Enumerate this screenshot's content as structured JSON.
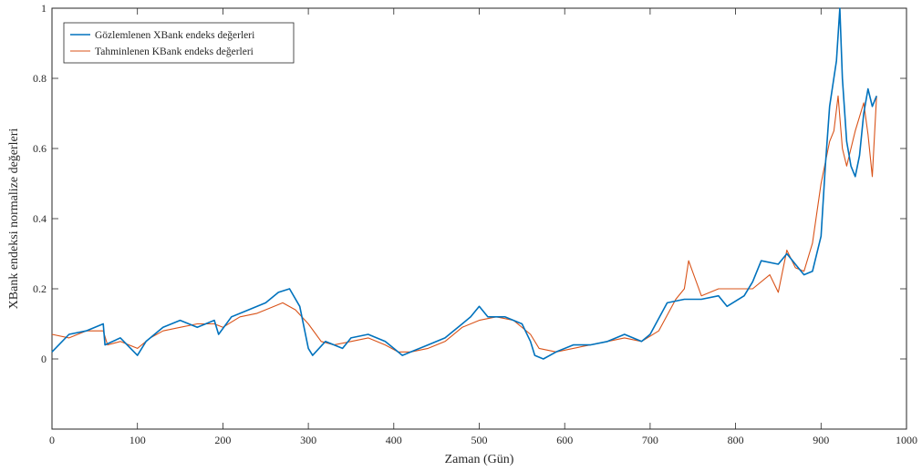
{
  "chart_data": {
    "type": "line",
    "title": "",
    "xlabel": "Zaman (Gün)",
    "ylabel": "XBank endeksi normalize değerleri",
    "xlim": [
      0,
      1000
    ],
    "ylim": [
      -0.2,
      1
    ],
    "x_ticks": [
      0,
      100,
      200,
      300,
      400,
      500,
      600,
      700,
      800,
      900,
      1000
    ],
    "y_ticks": [
      0,
      0.2,
      0.4,
      0.6,
      0.8,
      1
    ],
    "y_tick_labels": [
      "0",
      "0.2",
      "0.4",
      "0.6",
      "0.8",
      "1"
    ],
    "grid": false,
    "box": true,
    "legend_position": "top-left",
    "series": [
      {
        "name": "Gözlemlenen XBank endeks değerleri",
        "color": "#0072BD",
        "x": [
          0,
          20,
          40,
          60,
          62,
          80,
          100,
          110,
          130,
          150,
          170,
          190,
          195,
          210,
          230,
          250,
          265,
          278,
          290,
          300,
          305,
          320,
          340,
          350,
          370,
          390,
          400,
          410,
          420,
          440,
          460,
          480,
          490,
          500,
          510,
          530,
          550,
          560,
          565,
          575,
          590,
          610,
          630,
          650,
          670,
          690,
          700,
          720,
          740,
          760,
          780,
          790,
          810,
          820,
          830,
          850,
          860,
          880,
          890,
          900,
          905,
          910,
          918,
          922,
          925,
          930,
          935,
          940,
          945,
          950,
          955,
          960,
          965
        ],
        "y": [
          0.02,
          0.07,
          0.08,
          0.1,
          0.04,
          0.06,
          0.01,
          0.05,
          0.09,
          0.11,
          0.09,
          0.11,
          0.07,
          0.12,
          0.14,
          0.16,
          0.19,
          0.2,
          0.15,
          0.03,
          0.01,
          0.05,
          0.03,
          0.06,
          0.07,
          0.05,
          0.03,
          0.01,
          0.02,
          0.04,
          0.06,
          0.1,
          0.12,
          0.15,
          0.12,
          0.12,
          0.1,
          0.05,
          0.01,
          0.0,
          0.02,
          0.04,
          0.04,
          0.05,
          0.07,
          0.05,
          0.07,
          0.16,
          0.17,
          0.17,
          0.18,
          0.15,
          0.18,
          0.22,
          0.28,
          0.27,
          0.3,
          0.24,
          0.25,
          0.35,
          0.55,
          0.72,
          0.85,
          1.0,
          0.8,
          0.62,
          0.55,
          0.52,
          0.58,
          0.7,
          0.77,
          0.72,
          0.75
        ]
      },
      {
        "name": "Tahminlenen KBank endeks değerleri",
        "color": "#D95319",
        "x": [
          0,
          20,
          40,
          60,
          65,
          80,
          100,
          115,
          130,
          150,
          170,
          190,
          200,
          220,
          240,
          260,
          270,
          285,
          300,
          315,
          330,
          350,
          370,
          390,
          405,
          420,
          440,
          460,
          480,
          500,
          520,
          540,
          560,
          570,
          590,
          610,
          630,
          650,
          670,
          690,
          710,
          730,
          740,
          745,
          760,
          780,
          800,
          820,
          840,
          850,
          860,
          870,
          880,
          890,
          900,
          910,
          915,
          920,
          925,
          930,
          940,
          950,
          955,
          960,
          965
        ],
        "y": [
          0.07,
          0.06,
          0.08,
          0.08,
          0.04,
          0.05,
          0.03,
          0.06,
          0.08,
          0.09,
          0.1,
          0.1,
          0.09,
          0.12,
          0.13,
          0.15,
          0.16,
          0.14,
          0.1,
          0.05,
          0.04,
          0.05,
          0.06,
          0.04,
          0.02,
          0.02,
          0.03,
          0.05,
          0.09,
          0.11,
          0.12,
          0.11,
          0.07,
          0.03,
          0.02,
          0.03,
          0.04,
          0.05,
          0.06,
          0.05,
          0.08,
          0.17,
          0.2,
          0.28,
          0.18,
          0.2,
          0.2,
          0.2,
          0.24,
          0.19,
          0.31,
          0.26,
          0.25,
          0.33,
          0.5,
          0.62,
          0.65,
          0.75,
          0.6,
          0.55,
          0.65,
          0.73,
          0.64,
          0.52,
          0.75
        ]
      }
    ]
  }
}
